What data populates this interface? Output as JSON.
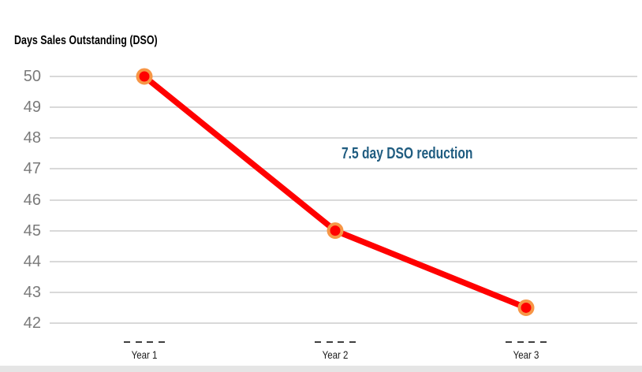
{
  "chart_data": {
    "type": "line",
    "title": "Days Sales Outstanding (DSO)",
    "categories": [
      "Year 1",
      "Year 2",
      "Year 3"
    ],
    "series": [
      {
        "name": "DSO",
        "values": [
          50,
          45,
          42.5
        ]
      }
    ],
    "annotation": {
      "text": "7.5 day DSO reduction",
      "position": "center-right-above-line"
    },
    "xlabel": "",
    "ylabel": "",
    "ylim": [
      42,
      50
    ],
    "yticks": [
      50,
      49,
      48,
      47,
      46,
      45,
      44,
      43,
      42
    ],
    "grid": "horizontal",
    "legend": "none",
    "tick_dashes_per_category": 4
  },
  "colors": {
    "line": "#FF0000",
    "marker_fill": "#FF0000",
    "marker_ring": "#F79646",
    "annotation": "#1F5C80",
    "gridline": "#D9D9D9",
    "axis_tick_label": "#7A7A7A",
    "category_label": "#1A1A1A",
    "tick_dash": "#3F3F3F",
    "title": "#000000",
    "footer_bar": "#E5E5E5",
    "background": "#FFFFFF"
  }
}
